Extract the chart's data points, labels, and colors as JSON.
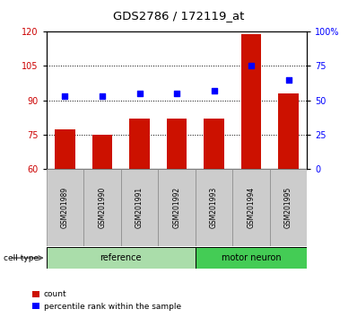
{
  "title": "GDS2786 / 172119_at",
  "samples": [
    "GSM201989",
    "GSM201990",
    "GSM201991",
    "GSM201992",
    "GSM201993",
    "GSM201994",
    "GSM201995"
  ],
  "bar_values": [
    77,
    75,
    82,
    82,
    82,
    119,
    93
  ],
  "percentile_values": [
    53,
    53,
    55,
    55,
    57,
    75,
    65
  ],
  "bar_color": "#cc1100",
  "dot_color": "#0000ff",
  "ylim_left": [
    60,
    120
  ],
  "ylim_right": [
    0,
    100
  ],
  "yticks_left": [
    60,
    75,
    90,
    105,
    120
  ],
  "yticks_right": [
    0,
    25,
    50,
    75,
    100
  ],
  "ytick_labels_right": [
    "0",
    "25",
    "50",
    "75",
    "100%"
  ],
  "left_axis_color": "#cc0000",
  "right_axis_color": "#0000ff",
  "groups": [
    {
      "label": "reference",
      "start": 0,
      "end": 4,
      "color": "#aaddaa"
    },
    {
      "label": "motor neuron",
      "start": 4,
      "end": 7,
      "color": "#44cc55"
    }
  ],
  "cell_type_label": "cell type",
  "legend_count_label": "count",
  "legend_percentile_label": "percentile rank within the sample",
  "bar_width": 0.55,
  "background_color": "#cccccc",
  "plot_bg_color": "#ffffff"
}
